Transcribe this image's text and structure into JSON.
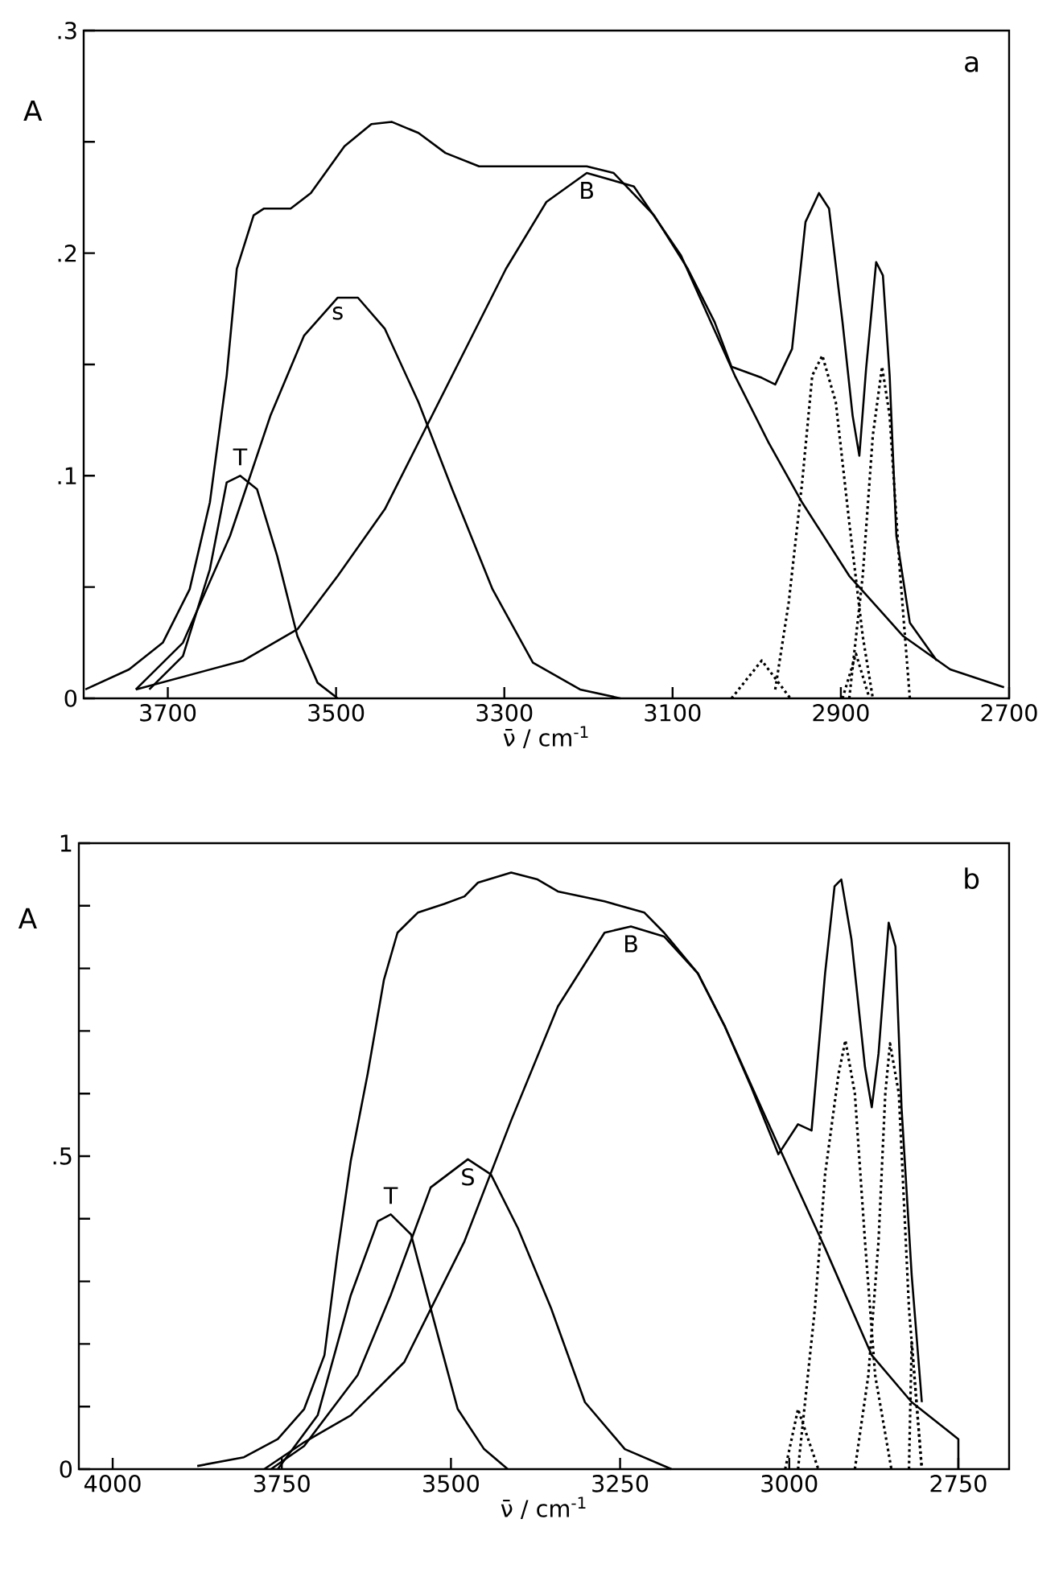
{
  "chart_data": [
    {
      "type": "line",
      "xlabel": "ν̄ / cm$^{-1}$",
      "ylabel": "A",
      "annotations": [
        "a"
      ],
      "xlim": [
        3800,
        2700
      ],
      "ylim": [
        0,
        0.3
      ],
      "xticks": [
        3700,
        3500,
        3300,
        3100,
        2900,
        2700
      ],
      "yticks": [
        0,
        {
          "value": 0.05,
          "label": null
        },
        {
          "value": 0.1,
          "label": ".1"
        },
        {
          "value": 0.15,
          "label": null
        },
        {
          "value": 0.2,
          "label": ".2"
        },
        {
          "value": 0.25,
          "label": null
        },
        {
          "value": 0.3,
          "label": ".3"
        }
      ],
      "marker": "none",
      "line_style": "solid",
      "grid": false,
      "series": [
        {
          "color": "#000000",
          "x": [
            3798,
            3746,
            3706,
            3674,
            3650,
            3630,
            3618,
            3598,
            3586,
            3554,
            3530,
            3490,
            3458,
            3434,
            3402,
            3370,
            3330,
            3266,
            3202,
            3170,
            3122,
            3082,
            3050,
            3030,
            2994,
            2978,
            2958,
            2942,
            2926,
            2914,
            2898,
            2886,
            2878,
            2870,
            2858,
            2850,
            2842,
            2834,
            2818,
            2786
          ],
          "values": [
            0.004,
            0.013,
            0.025,
            0.049,
            0.088,
            0.145,
            0.193,
            0.217,
            0.22,
            0.22,
            0.227,
            0.248,
            0.258,
            0.259,
            0.254,
            0.245,
            0.239,
            0.239,
            0.239,
            0.236,
            0.217,
            0.193,
            0.169,
            0.149,
            0.144,
            0.141,
            0.157,
            0.214,
            0.227,
            0.22,
            0.169,
            0.127,
            0.109,
            0.148,
            0.196,
            0.19,
            0.145,
            0.073,
            0.034,
            0.017
          ]
        },
        {
          "name": "T",
          "color": "#000000",
          "x": [
            3722,
            3682,
            3650,
            3630,
            3614,
            3594,
            3570,
            3546,
            3522,
            3498
          ],
          "values": [
            0.004,
            0.019,
            0.058,
            0.097,
            0.1,
            0.094,
            0.064,
            0.028,
            0.007,
            0
          ]
        },
        {
          "name": "s",
          "color": "#000000",
          "x": [
            3738,
            3682,
            3626,
            3578,
            3538,
            3498,
            3474,
            3442,
            3402,
            3362,
            3314,
            3266,
            3210,
            3162
          ],
          "values": [
            0.004,
            0.025,
            0.073,
            0.127,
            0.163,
            0.18,
            0.18,
            0.166,
            0.133,
            0.094,
            0.049,
            0.016,
            0.004,
            0
          ]
        },
        {
          "name": "B",
          "color": "#000000",
          "x": [
            3738,
            3610,
            3546,
            3498,
            3442,
            3394,
            3346,
            3298,
            3250,
            3202,
            3146,
            3090,
            3026,
            2986,
            2946,
            2890,
            2826,
            2770,
            2706
          ],
          "values": [
            0.004,
            0.017,
            0.031,
            0.055,
            0.085,
            0.121,
            0.157,
            0.193,
            0.223,
            0.236,
            0.23,
            0.199,
            0.145,
            0.115,
            0.088,
            0.055,
            0.028,
            0.013,
            0.005
          ]
        },
        {
          "color": "#000000",
          "line_style": "dotted",
          "x": [
            3030,
            2994,
            2960
          ],
          "values": [
            0,
            0.017,
            0
          ]
        },
        {
          "color": "#000000",
          "line_style": "dotted",
          "x": [
            2978,
            2962,
            2946,
            2934,
            2922,
            2906,
            2890,
            2874,
            2862
          ],
          "values": [
            0.004,
            0.043,
            0.097,
            0.145,
            0.154,
            0.133,
            0.079,
            0.028,
            0
          ]
        },
        {
          "color": "#000000",
          "line_style": "dotted",
          "x": [
            2898,
            2882,
            2866
          ],
          "values": [
            0,
            0.02,
            0
          ]
        },
        {
          "color": "#000000",
          "line_style": "dotted",
          "x": [
            2890,
            2874,
            2862,
            2851,
            2842,
            2830,
            2818
          ],
          "values": [
            0,
            0.055,
            0.118,
            0.149,
            0.127,
            0.058,
            0
          ]
        }
      ]
    },
    {
      "type": "line",
      "xlabel": "ν̄ / cm$^{-1}$",
      "ylabel": "A",
      "annotations": [
        "b"
      ],
      "xlim": [
        4050,
        2675
      ],
      "ylim": [
        0,
        1
      ],
      "xticks": [
        4000,
        3750,
        3500,
        3250,
        3000,
        2750
      ],
      "yticks": [
        0,
        {
          "value": 0.1,
          "label": null
        },
        {
          "value": 0.2,
          "label": null
        },
        {
          "value": 0.3,
          "label": null
        },
        {
          "value": 0.4,
          "label": null
        },
        {
          "value": 0.5,
          "label": ".5"
        },
        {
          "value": 0.6,
          "label": null
        },
        {
          "value": 0.7,
          "label": null
        },
        {
          "value": 0.8,
          "label": null
        },
        {
          "value": 0.9,
          "label": null
        },
        1
      ],
      "marker": "none",
      "line_style": "solid",
      "grid": false,
      "series": [
        {
          "color": "#000000",
          "x": [
            3875,
            3806,
            3756,
            3717,
            3687,
            3668,
            3648,
            3623,
            3599,
            3579,
            3549,
            3510,
            3480,
            3460,
            3411,
            3372,
            3342,
            3273,
            3214,
            3185,
            3135,
            3095,
            3056,
            3016,
            2987,
            2967,
            2947,
            2933,
            2923,
            2908,
            2888,
            2878,
            2868,
            2853,
            2843,
            2834,
            2819,
            2804
          ],
          "values": [
            0.005,
            0.019,
            0.048,
            0.096,
            0.182,
            0.343,
            0.493,
            0.632,
            0.782,
            0.857,
            0.889,
            0.903,
            0.915,
            0.937,
            0.953,
            0.942,
            0.923,
            0.907,
            0.889,
            0.857,
            0.792,
            0.707,
            0.61,
            0.503,
            0.551,
            0.541,
            0.792,
            0.931,
            0.942,
            0.846,
            0.642,
            0.578,
            0.664,
            0.873,
            0.835,
            0.578,
            0.31,
            0.107
          ]
        },
        {
          "name": "T",
          "color": "#000000",
          "x": [
            3756,
            3697,
            3648,
            3608,
            3589,
            3559,
            3530,
            3490,
            3451,
            3416
          ],
          "values": [
            0,
            0.086,
            0.278,
            0.396,
            0.407,
            0.375,
            0.257,
            0.096,
            0.032,
            0
          ]
        },
        {
          "name": "S",
          "color": "#000000",
          "x": [
            3766,
            3717,
            3638,
            3589,
            3530,
            3475,
            3441,
            3401,
            3352,
            3302,
            3243,
            3174
          ],
          "values": [
            0,
            0.037,
            0.15,
            0.278,
            0.45,
            0.495,
            0.471,
            0.385,
            0.257,
            0.107,
            0.032,
            0
          ]
        },
        {
          "name": "B",
          "color": "#000000",
          "x": [
            3776,
            3717,
            3648,
            3569,
            3480,
            3411,
            3342,
            3273,
            3234,
            3185,
            3135,
            3095,
            3046,
            2997,
            2947,
            2878,
            2819,
            2750,
            2750
          ],
          "values": [
            0,
            0.043,
            0.086,
            0.171,
            0.364,
            0.557,
            0.739,
            0.857,
            0.867,
            0.851,
            0.792,
            0.707,
            0.589,
            0.471,
            0.353,
            0.182,
            0.107,
            0.048,
            0
          ]
        },
        {
          "color": "#000000",
          "line_style": "dotted",
          "x": [
            3006,
            2987,
            2957
          ],
          "values": [
            0,
            0.096,
            0
          ]
        },
        {
          "color": "#000000",
          "line_style": "dotted",
          "x": [
            2987,
            2962,
            2947,
            2927,
            2917,
            2903,
            2888,
            2873,
            2849
          ],
          "values": [
            0,
            0.257,
            0.471,
            0.632,
            0.685,
            0.6,
            0.364,
            0.15,
            0
          ]
        },
        {
          "color": "#000000",
          "line_style": "dotted",
          "x": [
            2903,
            2883,
            2868,
            2858,
            2851,
            2838,
            2823,
            2804
          ],
          "values": [
            0,
            0.15,
            0.364,
            0.6,
            0.68,
            0.6,
            0.257,
            0
          ]
        },
        {
          "color": "#000000",
          "line_style": "dotted",
          "x": [
            2823,
            2819,
            2804
          ],
          "values": [
            0,
            0.203,
            0
          ]
        }
      ]
    }
  ]
}
